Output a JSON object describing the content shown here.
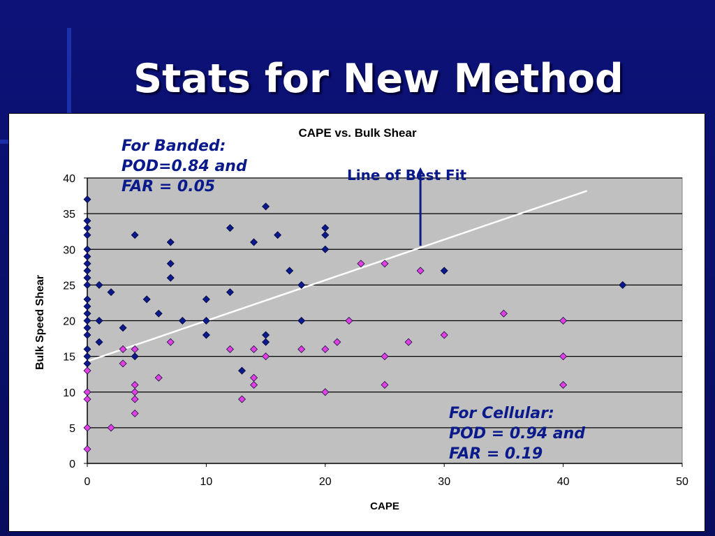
{
  "slide": {
    "title": "Stats for New Method",
    "background_color": "#0a0f6a"
  },
  "annotations": {
    "banded": "For Banded:\nPOD=0.84 and\nFAR = 0.05",
    "cellular": "For Cellular:\nPOD = 0.94 and\nFAR = 0.19",
    "best_fit": "Line of Best Fit"
  },
  "chart_data": {
    "type": "scatter",
    "title": "CAPE vs. Bulk Shear",
    "xlabel": "CAPE",
    "ylabel": "Bulk Speed Shear",
    "xlim": [
      0,
      50
    ],
    "ylim": [
      0,
      40
    ],
    "xticks": [
      0,
      10,
      20,
      30,
      40,
      50
    ],
    "yticks": [
      0,
      5,
      10,
      15,
      20,
      25,
      30,
      35,
      40
    ],
    "grid": "horizontal",
    "plot_background": "#c0c0c0",
    "series": [
      {
        "color": "#0a1a8a",
        "marker": "diamond",
        "points": [
          [
            0,
            37
          ],
          [
            0,
            34
          ],
          [
            0,
            33
          ],
          [
            0,
            32
          ],
          [
            0,
            30
          ],
          [
            0,
            29
          ],
          [
            0,
            28
          ],
          [
            0,
            27
          ],
          [
            0,
            26
          ],
          [
            0,
            25
          ],
          [
            0,
            23
          ],
          [
            0,
            22
          ],
          [
            0,
            21
          ],
          [
            0,
            20
          ],
          [
            0,
            19
          ],
          [
            0,
            18
          ],
          [
            0,
            16
          ],
          [
            0,
            15
          ],
          [
            0,
            14
          ],
          [
            1,
            25
          ],
          [
            1,
            20
          ],
          [
            1,
            17
          ],
          [
            2,
            24
          ],
          [
            3,
            19
          ],
          [
            4,
            32
          ],
          [
            4,
            15
          ],
          [
            5,
            23
          ],
          [
            6,
            21
          ],
          [
            7,
            31
          ],
          [
            7,
            28
          ],
          [
            7,
            26
          ],
          [
            8,
            20
          ],
          [
            10,
            23
          ],
          [
            10,
            20
          ],
          [
            10,
            18
          ],
          [
            12,
            33
          ],
          [
            12,
            24
          ],
          [
            13,
            13
          ],
          [
            14,
            31
          ],
          [
            15,
            36
          ],
          [
            15,
            18
          ],
          [
            15,
            17
          ],
          [
            16,
            32
          ],
          [
            17,
            27
          ],
          [
            18,
            25
          ],
          [
            18,
            20
          ],
          [
            20,
            33
          ],
          [
            20,
            32
          ],
          [
            20,
            30
          ],
          [
            30,
            27
          ],
          [
            45,
            25
          ]
        ]
      },
      {
        "color": "#e040e0",
        "marker": "diamond",
        "points": [
          [
            0,
            13
          ],
          [
            0,
            10
          ],
          [
            0,
            9
          ],
          [
            0,
            5
          ],
          [
            0,
            2
          ],
          [
            2,
            5
          ],
          [
            3,
            16
          ],
          [
            3,
            14
          ],
          [
            4,
            16
          ],
          [
            4,
            11
          ],
          [
            4,
            10
          ],
          [
            4,
            9
          ],
          [
            4,
            7
          ],
          [
            6,
            12
          ],
          [
            7,
            17
          ],
          [
            12,
            16
          ],
          [
            13,
            9
          ],
          [
            14,
            16
          ],
          [
            14,
            12
          ],
          [
            14,
            11
          ],
          [
            15,
            15
          ],
          [
            18,
            16
          ],
          [
            20,
            16
          ],
          [
            20,
            10
          ],
          [
            21,
            17
          ],
          [
            22,
            20
          ],
          [
            23,
            28
          ],
          [
            25,
            28
          ],
          [
            25,
            15
          ],
          [
            25,
            11
          ],
          [
            27,
            17
          ],
          [
            28,
            27
          ],
          [
            30,
            18
          ],
          [
            35,
            21
          ],
          [
            40,
            20
          ],
          [
            40,
            15
          ],
          [
            40,
            11
          ]
        ]
      }
    ],
    "trendline": {
      "x": [
        0,
        42
      ],
      "y": [
        14.3,
        38.2
      ],
      "color": "#ffffff"
    },
    "arrow": {
      "x": 28,
      "y_from": 30.5,
      "y_to": 41.5,
      "color": "#0a1a8a"
    }
  }
}
